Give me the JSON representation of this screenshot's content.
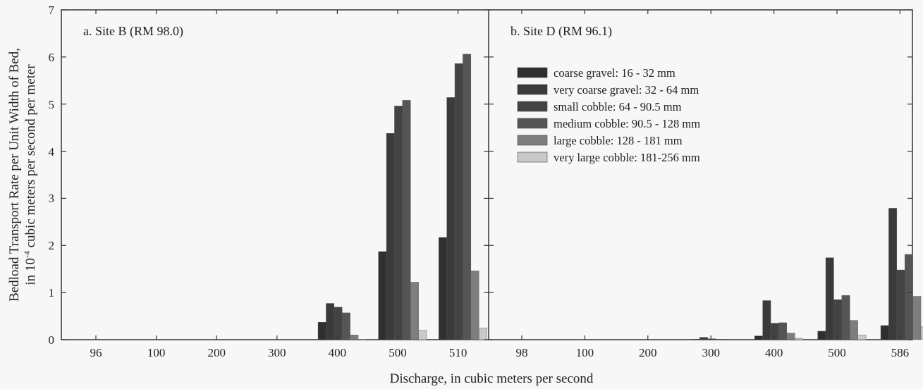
{
  "colors": {
    "series": [
      "#2f2f2f",
      "#3a3a3a",
      "#434343",
      "#555555",
      "#7e7e7e",
      "#c9c9c9"
    ],
    "frame": "#333333",
    "background": "#f7f7f7"
  },
  "chart_data": [
    {
      "type": "bar",
      "title": "a. Site B (RM 98.0)",
      "categories": [
        "96",
        "100",
        "200",
        "300",
        "400",
        "500",
        "510"
      ],
      "series": [
        {
          "name": "coarse gravel: 16 - 32 mm",
          "values": [
            0,
            0,
            0,
            0,
            0.37,
            1.87,
            2.17
          ]
        },
        {
          "name": "very coarse gravel: 32 - 64 mm",
          "values": [
            0,
            0,
            0,
            0,
            0.77,
            4.38,
            5.14
          ]
        },
        {
          "name": "small cobble: 64 - 90.5 mm",
          "values": [
            0,
            0,
            0,
            0,
            0.69,
            4.96,
            5.86
          ]
        },
        {
          "name": "medium cobble: 90.5 - 128 mm",
          "values": [
            0,
            0,
            0,
            0,
            0.57,
            5.08,
            6.06
          ]
        },
        {
          "name": "large cobble: 128 - 181 mm",
          "values": [
            0,
            0,
            0,
            0,
            0.1,
            1.22,
            1.46
          ]
        },
        {
          "name": "very large cobble: 181-256 mm",
          "values": [
            0,
            0,
            0,
            0,
            0.01,
            0.2,
            0.25
          ]
        }
      ],
      "ylim": [
        0,
        7
      ],
      "yticks": [
        "0",
        "1",
        "2",
        "3",
        "4",
        "5",
        "6",
        "7"
      ]
    },
    {
      "type": "bar",
      "title": "b. Site D (RM 96.1)",
      "categories": [
        "98",
        "100",
        "200",
        "300",
        "400",
        "500",
        "586"
      ],
      "series": [
        {
          "name": "coarse gravel: 16 - 32 mm",
          "values": [
            0,
            0,
            0,
            0.01,
            0.08,
            0.18,
            0.3
          ]
        },
        {
          "name": "very coarse gravel: 32 - 64 mm",
          "values": [
            0,
            0,
            0,
            0.05,
            0.83,
            1.74,
            2.79
          ]
        },
        {
          "name": "small cobble: 64 - 90.5 mm",
          "values": [
            0,
            0,
            0,
            0.02,
            0.35,
            0.85,
            1.48
          ]
        },
        {
          "name": "medium cobble: 90.5 - 128 mm",
          "values": [
            0,
            0,
            0,
            0.01,
            0.36,
            0.94,
            1.81
          ]
        },
        {
          "name": "large cobble: 128 - 181 mm",
          "values": [
            0,
            0,
            0,
            0,
            0.14,
            0.41,
            0.92
          ]
        },
        {
          "name": "very large cobble: 181-256 mm",
          "values": [
            0,
            0,
            0,
            0,
            0.03,
            0.1,
            0.27
          ]
        }
      ],
      "ylim": [
        0,
        7
      ]
    }
  ],
  "axes": {
    "ylabel_line1": "Bedload Transport Rate per Unit Width of Bed,",
    "ylabel_line2_prefix": "in 10",
    "ylabel_line2_sup": "-4",
    "ylabel_line2_suffix": " cubic meters per second per meter",
    "xlabel": "Discharge, in cubic meters per second"
  },
  "legend": {
    "placement": "top-left of panel b",
    "items": [
      "coarse gravel: 16 - 32 mm",
      "very coarse gravel: 32 - 64 mm",
      "small cobble: 64 - 90.5 mm",
      "medium cobble: 90.5 - 128 mm",
      "large cobble: 128 - 181 mm",
      "very large cobble: 181-256 mm"
    ]
  }
}
